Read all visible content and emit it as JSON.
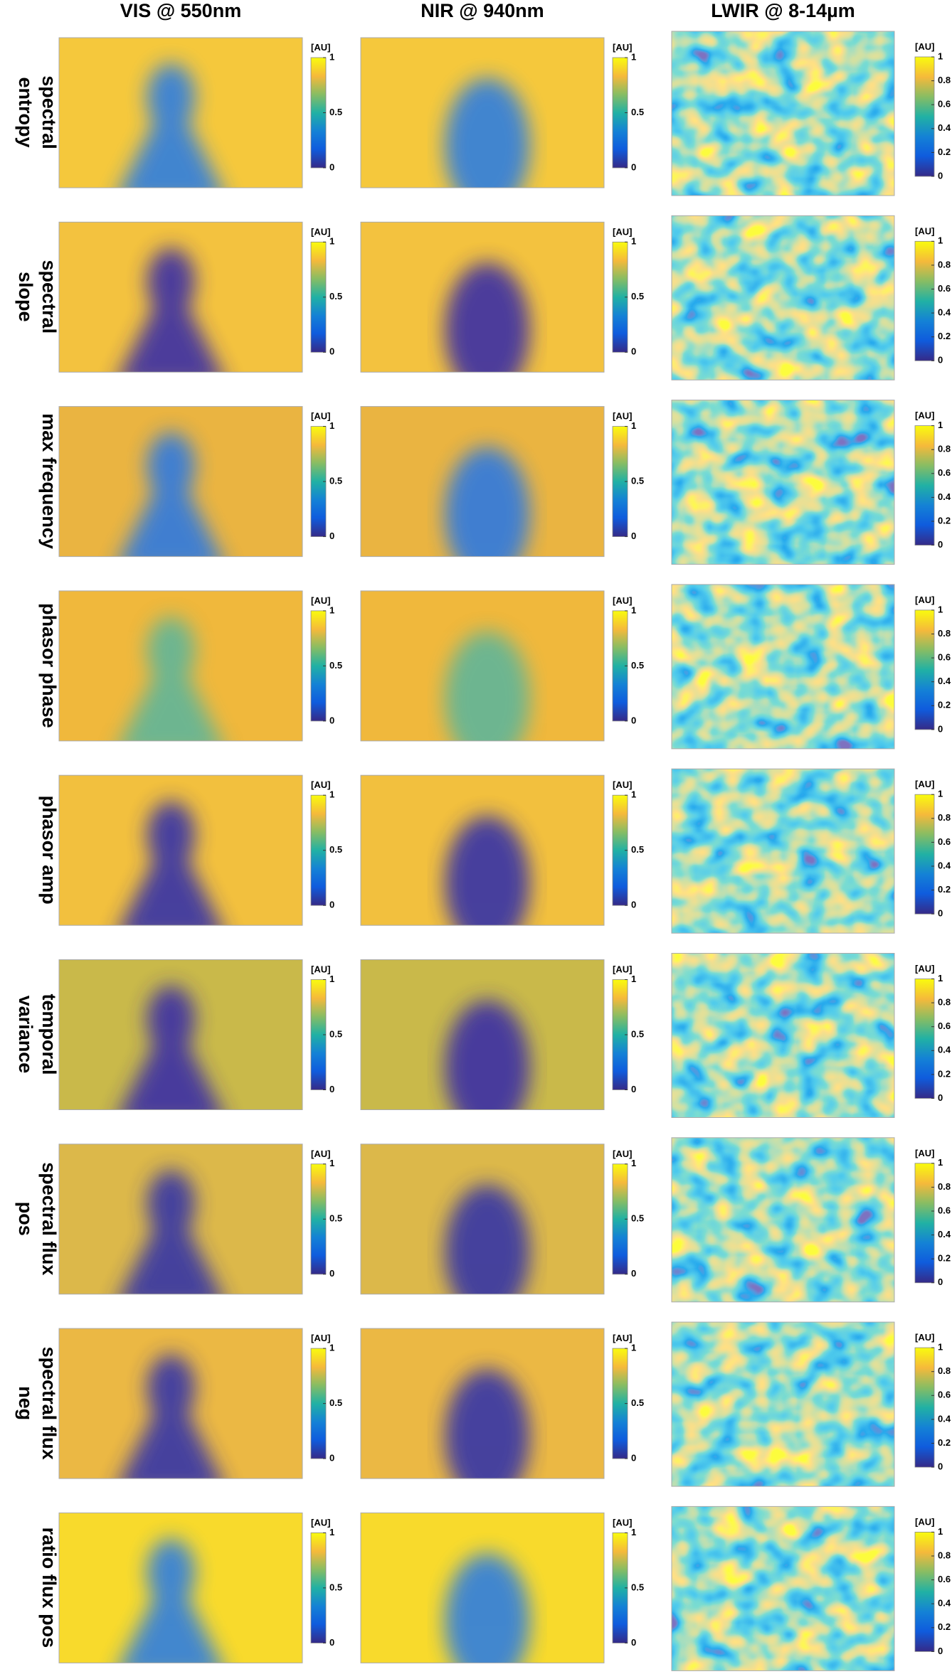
{
  "columns": [
    {
      "title": "VIS @ 550nm",
      "colorbar_label": "[AU]",
      "ticks": [
        0,
        0.5,
        1
      ]
    },
    {
      "title": "NIR @ 940nm",
      "colorbar_label": "[AU]",
      "ticks": [
        0,
        0.5,
        1
      ]
    },
    {
      "title": "LWIR @ 8-14µm",
      "colorbar_label": "[AU]",
      "ticks": [
        0,
        0.2,
        0.4,
        0.6,
        0.8,
        1
      ]
    }
  ],
  "rows": [
    {
      "label_lines": [
        "spectral",
        "entropy"
      ]
    },
    {
      "label_lines": [
        "spectral",
        "slope"
      ]
    },
    {
      "label_lines": [
        "max frequency"
      ]
    },
    {
      "label_lines": [
        "phasor phase"
      ]
    },
    {
      "label_lines": [
        "phasor amp"
      ]
    },
    {
      "label_lines": [
        "temporal",
        "variance"
      ]
    },
    {
      "label_lines": [
        "spectral flux",
        "pos"
      ]
    },
    {
      "label_lines": [
        "spectral flux",
        "neg"
      ]
    },
    {
      "label_lines": [
        "ratio flux pos"
      ]
    }
  ]
}
